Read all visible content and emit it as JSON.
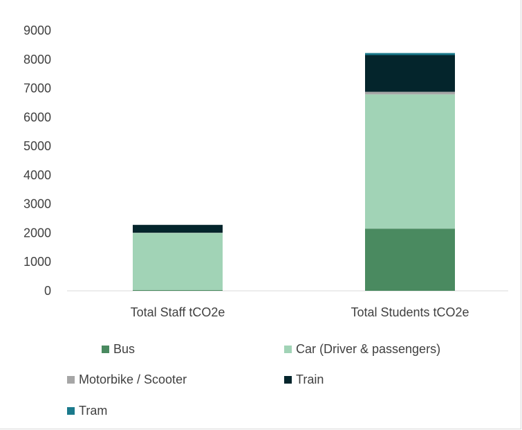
{
  "chart_data": {
    "type": "bar",
    "stacked": true,
    "categories": [
      "Total Staff tCO2e",
      "Total Students tCO2e"
    ],
    "series": [
      {
        "name": "Bus",
        "color": "#4a8a60",
        "values": [
          30,
          2150
        ]
      },
      {
        "name": "Car (Driver & passengers)",
        "color": "#a1d3b6",
        "values": [
          1970,
          4640
        ]
      },
      {
        "name": "Motorbike / Scooter",
        "color": "#a6a6a6",
        "values": [
          10,
          90
        ]
      },
      {
        "name": "Train",
        "color": "#04252c",
        "values": [
          270,
          1270
        ]
      },
      {
        "name": "Tram",
        "color": "#1b7a8c",
        "values": [
          0,
          70
        ]
      }
    ],
    "ylim": [
      0,
      9000
    ],
    "yticks": [
      "0",
      "1000",
      "2000",
      "3000",
      "4000",
      "5000",
      "6000",
      "7000",
      "8000",
      "9000"
    ],
    "legend_position": "bottom",
    "grid": false
  }
}
